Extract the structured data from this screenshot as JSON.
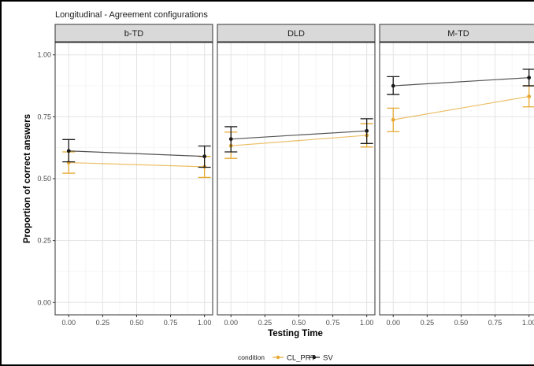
{
  "chart_data": {
    "type": "line",
    "title": "Longitudinal - Agreement configurations",
    "xlabel": "Testing Time",
    "ylabel": "Proportion of correct answers",
    "xlim": [
      -0.1,
      1.06
    ],
    "ylim": [
      -0.05,
      1.05
    ],
    "x_ticks": [
      "0.00",
      "0.25",
      "0.50",
      "0.75",
      "1.00"
    ],
    "y_ticks": [
      "0.00",
      "0.25",
      "0.50",
      "0.75",
      "1.00"
    ],
    "grid": true,
    "legend": {
      "title": "condition",
      "position": "bottom",
      "entries": [
        "CL_PRT",
        "SV"
      ]
    },
    "colors": {
      "CL_PRT": "#e6a832",
      "SV": "#1a1a1a"
    },
    "panels": [
      {
        "name": "b-TD",
        "series": [
          {
            "name": "CL_PRT",
            "x": [
              0,
              1
            ],
            "y": [
              0.565,
              0.548
            ],
            "err_low": [
              0.522,
              0.505
            ],
            "err_high": [
              0.608,
              0.59
            ]
          },
          {
            "name": "SV",
            "x": [
              0,
              1
            ],
            "y": [
              0.612,
              0.59
            ],
            "err_low": [
              0.568,
              0.546
            ],
            "err_high": [
              0.658,
              0.632
            ]
          }
        ]
      },
      {
        "name": "DLD",
        "series": [
          {
            "name": "CL_PRT",
            "x": [
              0,
              1
            ],
            "y": [
              0.633,
              0.675
            ],
            "err_low": [
              0.582,
              0.628
            ],
            "err_high": [
              0.688,
              0.722
            ]
          },
          {
            "name": "SV",
            "x": [
              0,
              1
            ],
            "y": [
              0.66,
              0.693
            ],
            "err_low": [
              0.608,
              0.642
            ],
            "err_high": [
              0.71,
              0.742
            ]
          }
        ]
      },
      {
        "name": "M-TD",
        "series": [
          {
            "name": "CL_PRT",
            "x": [
              0,
              1
            ],
            "y": [
              0.738,
              0.832
            ],
            "err_low": [
              0.69,
              0.79
            ],
            "err_high": [
              0.785,
              0.876
            ]
          },
          {
            "name": "SV",
            "x": [
              0,
              1
            ],
            "y": [
              0.875,
              0.908
            ],
            "err_low": [
              0.84,
              0.875
            ],
            "err_high": [
              0.912,
              0.942
            ]
          }
        ]
      }
    ]
  }
}
